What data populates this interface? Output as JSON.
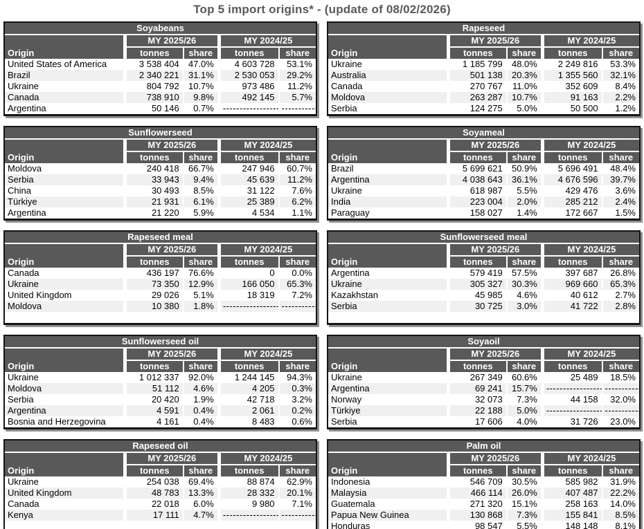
{
  "title": "Top 5 import origins* - (update of 08/02/2026)",
  "column_headers": {
    "origin": "Origin",
    "my_periods": [
      "MY 2025/26",
      "MY 2024/25"
    ],
    "tonnes": "tonnes",
    "share": "share"
  },
  "dash_tonnes": "-----------------",
  "dash_share": "------------",
  "tables": [
    {
      "name": "Soyabeans",
      "side": "left",
      "rows": [
        [
          "United States of America",
          "3 538 404",
          "47.0%",
          "4 603 728",
          "53.1%"
        ],
        [
          "Brazil",
          "2 340 221",
          "31.1%",
          "2 530 053",
          "29.2%"
        ],
        [
          "Ukraine",
          "804 792",
          "10.7%",
          "973 486",
          "11.2%"
        ],
        [
          "Canada",
          "738 910",
          "9.8%",
          "492 145",
          "5.7%"
        ],
        [
          "Argentina",
          "50 146",
          "0.7%",
          "-----------------",
          "------------"
        ]
      ],
      "empty_row": false
    },
    {
      "name": "Sunflowerseed",
      "side": "left",
      "rows": [
        [
          "Moldova",
          "240 418",
          "66.7%",
          "247 946",
          "60.7%"
        ],
        [
          "Serbia",
          "33 943",
          "9.4%",
          "45 639",
          "11.2%"
        ],
        [
          "China",
          "30 493",
          "8.5%",
          "31 122",
          "7.6%"
        ],
        [
          "Türkiye",
          "21 931",
          "6.1%",
          "25 389",
          "6.2%"
        ],
        [
          "Argentina",
          "21 220",
          "5.9%",
          "4 534",
          "1.1%"
        ]
      ],
      "empty_row": false
    },
    {
      "name": "Rapeseed meal",
      "side": "left",
      "rows": [
        [
          "Canada",
          "436 197",
          "76.6%",
          "0",
          "0.0%"
        ],
        [
          "Ukraine",
          "73 350",
          "12.9%",
          "166 050",
          "65.3%"
        ],
        [
          "United Kingdom",
          "29 026",
          "5.1%",
          "18 319",
          "7.2%"
        ],
        [
          "Moldova",
          "10 380",
          "1.8%",
          "-----------------",
          "------------"
        ]
      ],
      "empty_row": true
    },
    {
      "name": "Sunflowerseed oil",
      "side": "left",
      "rows": [
        [
          "Ukraine",
          "1 012 337",
          "92.0%",
          "1 244 145",
          "94.3%"
        ],
        [
          "Moldova",
          "51 112",
          "4.6%",
          "4 205",
          "0.3%"
        ],
        [
          "Serbia",
          "20 420",
          "1.9%",
          "42 718",
          "3.2%"
        ],
        [
          "Argentina",
          "4 591",
          "0.4%",
          "2 061",
          "0.2%"
        ],
        [
          "Bosnia and Herzegovina",
          "4 161",
          "0.4%",
          "8 483",
          "0.6%"
        ]
      ],
      "empty_row": false
    },
    {
      "name": "Rapeseed oil",
      "side": "left",
      "rows": [
        [
          "Ukraine",
          "254 038",
          "69.4%",
          "88 874",
          "62.9%"
        ],
        [
          "United Kingdom",
          "48 783",
          "13.3%",
          "28 332",
          "20.1%"
        ],
        [
          "Canada",
          "22 018",
          "6.0%",
          "9 980",
          "7.1%"
        ],
        [
          "Kenya",
          "17 111",
          "4.7%",
          "-----------------",
          "------------"
        ]
      ],
      "empty_row": true
    },
    {
      "name": "Rapeseed",
      "side": "right",
      "rows": [
        [
          "Ukraine",
          "1 185 799",
          "48.0%",
          "2 249 816",
          "53.3%"
        ],
        [
          "Australia",
          "501 138",
          "20.3%",
          "1 355 560",
          "32.1%"
        ],
        [
          "Canada",
          "270 767",
          "11.0%",
          "352 609",
          "8.4%"
        ],
        [
          "Moldova",
          "263 287",
          "10.7%",
          "91 163",
          "2.2%"
        ],
        [
          "Serbia",
          "124 275",
          "5.0%",
          "50 500",
          "1.2%"
        ]
      ],
      "empty_row": false
    },
    {
      "name": "Soyameal",
      "side": "right",
      "rows": [
        [
          "Brazil",
          "5 699 621",
          "50.9%",
          "5 696 491",
          "48.4%"
        ],
        [
          "Argentina",
          "4 038 643",
          "36.1%",
          "4 676 596",
          "39.7%"
        ],
        [
          "Ukraine",
          "618 987",
          "5.5%",
          "429 476",
          "3.6%"
        ],
        [
          "India",
          "223 004",
          "2.0%",
          "285 212",
          "2.4%"
        ],
        [
          "Paraguay",
          "158 027",
          "1.4%",
          "172 667",
          "1.5%"
        ]
      ],
      "empty_row": false
    },
    {
      "name": "Sunflowerseed meal",
      "side": "right",
      "rows": [
        [
          "Argentina",
          "579 419",
          "57.5%",
          "397 687",
          "26.8%"
        ],
        [
          "Ukraine",
          "305 327",
          "30.3%",
          "969 660",
          "65.3%"
        ],
        [
          "Kazakhstan",
          "45 985",
          "4.6%",
          "40 612",
          "2.7%"
        ],
        [
          "Serbia",
          "30 725",
          "3.0%",
          "41 722",
          "2.8%"
        ]
      ],
      "empty_row": true
    },
    {
      "name": "Soyaoil",
      "side": "right",
      "rows": [
        [
          "Ukraine",
          "267 349",
          "60.6%",
          "25 489",
          "18.5%"
        ],
        [
          "Argentina",
          "69 241",
          "15.7%",
          "-----------------",
          "------------"
        ],
        [
          "Norway",
          "32 073",
          "7.3%",
          "44 158",
          "32.0%"
        ],
        [
          "Türkiye",
          "22 188",
          "5.0%",
          "-----------------",
          "------------"
        ],
        [
          "Serbia",
          "17 606",
          "4.0%",
          "31 726",
          "23.0%"
        ]
      ],
      "empty_row": false
    },
    {
      "name": "Palm oil",
      "side": "right",
      "rows": [
        [
          "Indonesia",
          "546 709",
          "30.5%",
          "585 982",
          "31.9%"
        ],
        [
          "Malaysia",
          "466 114",
          "26.0%",
          "407 487",
          "22.2%"
        ],
        [
          "Guatemala",
          "271 320",
          "15.1%",
          "258 163",
          "14.0%"
        ],
        [
          "Papua New Guinea",
          "130 868",
          "7.3%",
          "155 841",
          "8.5%"
        ],
        [
          "Honduras",
          "98 547",
          "5.5%",
          "148 148",
          "8.1%"
        ]
      ],
      "empty_row": false
    }
  ],
  "colors": {
    "header_bg": "#595959",
    "header_text": "#ffffff",
    "stripe": "#f0f0f0",
    "border": "#141414",
    "shadow": "#8f8f8f",
    "title_text": "#595959"
  }
}
